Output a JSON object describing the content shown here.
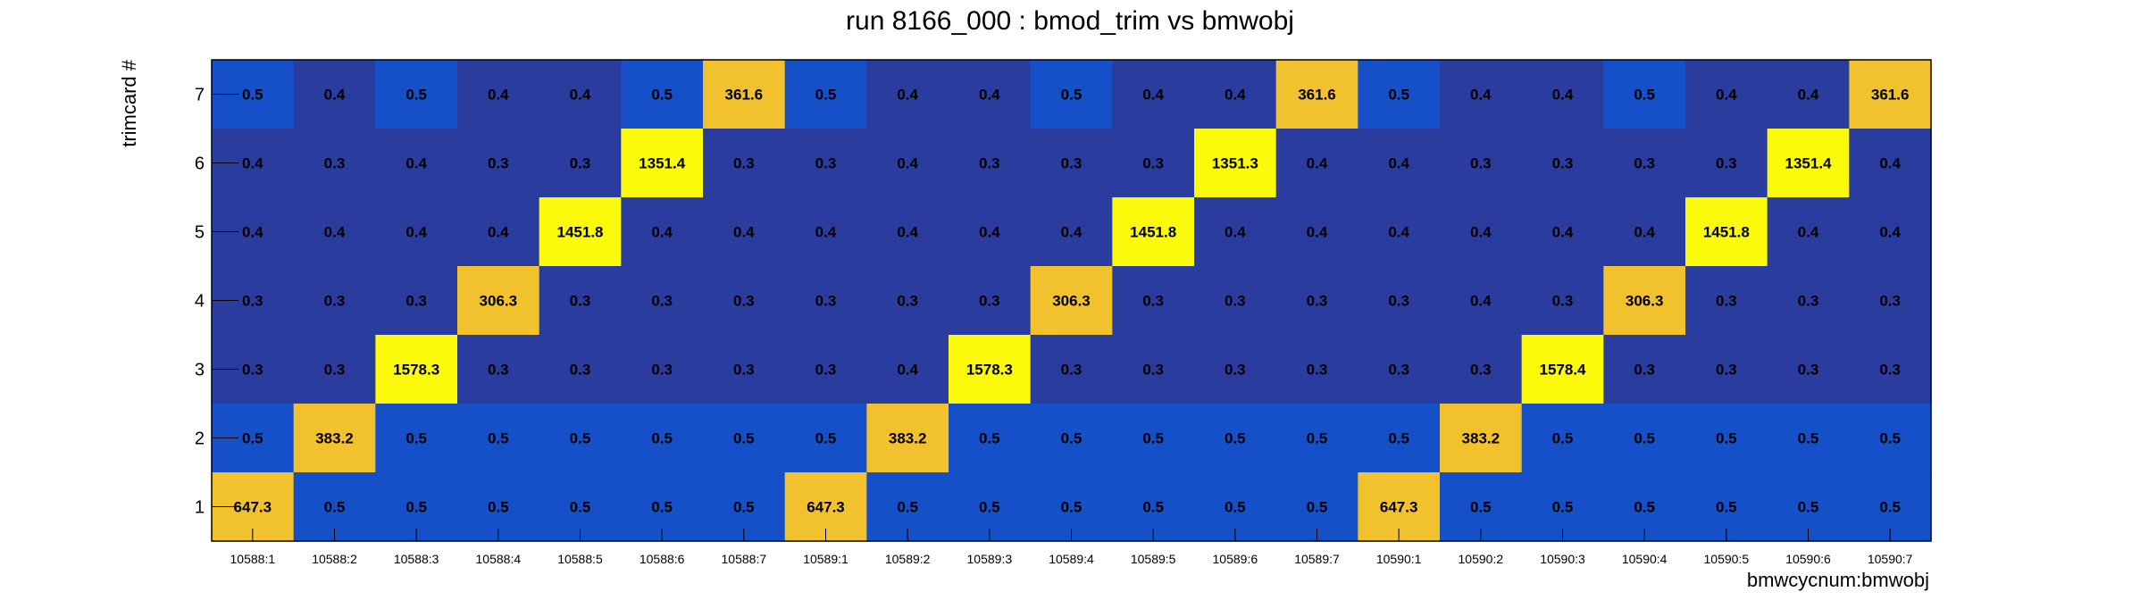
{
  "chart_data": {
    "type": "heatmap",
    "title": "run 8166_000 : bmod_trim vs bmwobj",
    "xlabel": "bmwcycnum:bmwobj",
    "ylabel": "trimcard #",
    "x_categories": [
      "10588:1",
      "10588:2",
      "10588:3",
      "10588:4",
      "10588:5",
      "10588:6",
      "10588:7",
      "10589:1",
      "10589:2",
      "10589:3",
      "10589:4",
      "10589:5",
      "10589:6",
      "10589:7",
      "10590:1",
      "10590:2",
      "10590:3",
      "10590:4",
      "10590:5",
      "10590:6",
      "10590:7"
    ],
    "y_categories": [
      "1",
      "2",
      "3",
      "4",
      "5",
      "6",
      "7"
    ],
    "rows": [
      {
        "y": "7",
        "values": [
          "0.5",
          "0.4",
          "0.5",
          "0.4",
          "0.4",
          "0.5",
          "361.6",
          "0.5",
          "0.4",
          "0.4",
          "0.5",
          "0.4",
          "0.4",
          "361.6",
          "0.5",
          "0.4",
          "0.4",
          "0.5",
          "0.4",
          "0.4",
          "361.6"
        ]
      },
      {
        "y": "6",
        "values": [
          "0.4",
          "0.3",
          "0.4",
          "0.3",
          "0.3",
          "1351.4",
          "0.3",
          "0.3",
          "0.4",
          "0.3",
          "0.3",
          "0.3",
          "1351.3",
          "0.4",
          "0.4",
          "0.3",
          "0.3",
          "0.3",
          "0.3",
          "1351.4",
          "0.4"
        ]
      },
      {
        "y": "5",
        "values": [
          "0.4",
          "0.4",
          "0.4",
          "0.4",
          "1451.8",
          "0.4",
          "0.4",
          "0.4",
          "0.4",
          "0.4",
          "0.4",
          "1451.8",
          "0.4",
          "0.4",
          "0.4",
          "0.4",
          "0.4",
          "0.4",
          "1451.8",
          "0.4",
          "0.4"
        ]
      },
      {
        "y": "4",
        "values": [
          "0.3",
          "0.3",
          "0.3",
          "306.3",
          "0.3",
          "0.3",
          "0.3",
          "0.3",
          "0.3",
          "0.3",
          "306.3",
          "0.3",
          "0.3",
          "0.3",
          "0.3",
          "0.4",
          "0.3",
          "306.3",
          "0.3",
          "0.3",
          "0.3"
        ]
      },
      {
        "y": "3",
        "values": [
          "0.3",
          "0.3",
          "1578.3",
          "0.3",
          "0.3",
          "0.3",
          "0.3",
          "0.3",
          "0.4",
          "1578.3",
          "0.3",
          "0.3",
          "0.3",
          "0.3",
          "0.3",
          "0.3",
          "1578.4",
          "0.3",
          "0.3",
          "0.3",
          "0.3"
        ]
      },
      {
        "y": "2",
        "values": [
          "0.5",
          "383.2",
          "0.5",
          "0.5",
          "0.5",
          "0.5",
          "0.5",
          "0.5",
          "383.2",
          "0.5",
          "0.5",
          "0.5",
          "0.5",
          "0.5",
          "0.5",
          "383.2",
          "0.5",
          "0.5",
          "0.5",
          "0.5",
          "0.5"
        ]
      },
      {
        "y": "1",
        "values": [
          "647.3",
          "0.5",
          "0.5",
          "0.5",
          "0.5",
          "0.5",
          "0.5",
          "647.3",
          "0.5",
          "0.5",
          "0.5",
          "0.5",
          "0.5",
          "0.5",
          "647.3",
          "0.5",
          "0.5",
          "0.5",
          "0.5",
          "0.5",
          "0.5"
        ]
      }
    ],
    "colors": {
      "level_0_3": "#2a3d9f",
      "level_0_4": "#2a3d9f",
      "level_0_5": "#1650c8",
      "level_mid": "#f2c12e",
      "level_high": "#fafa0a"
    },
    "grid": false,
    "legend": "none"
  }
}
